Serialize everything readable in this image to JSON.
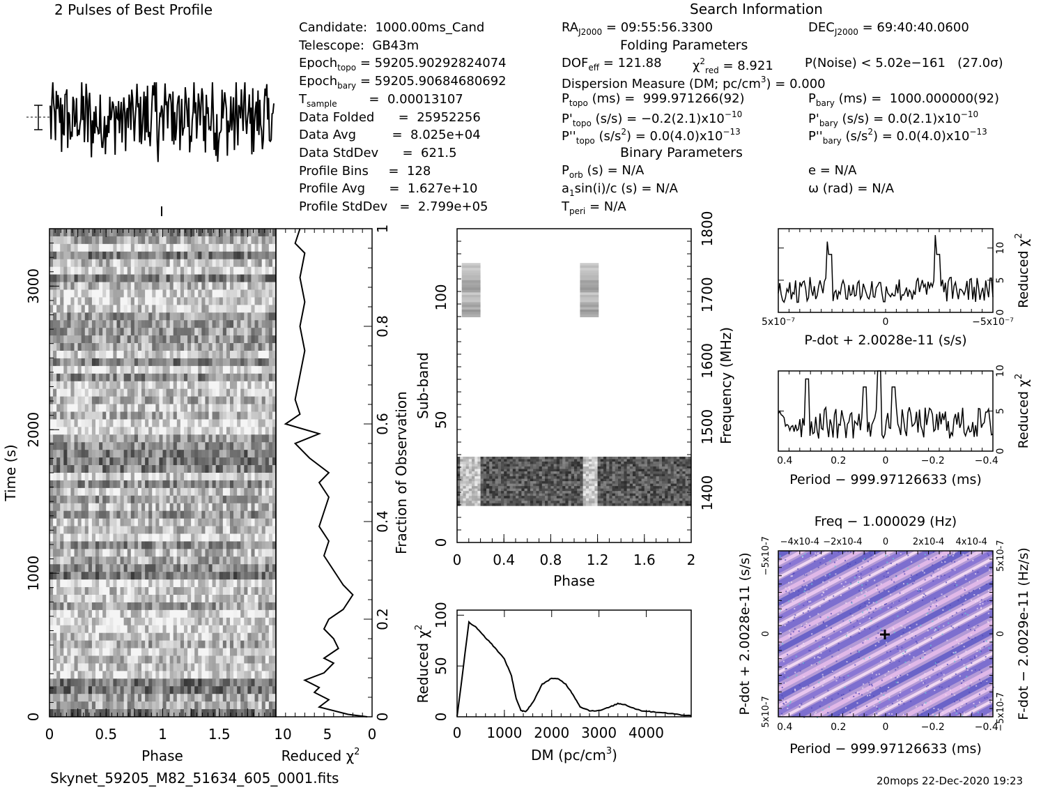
{
  "header": {
    "best_profile_title": "2 Pulses of Best Profile",
    "search_info_title": "Search Information",
    "folding_title": "Folding Parameters",
    "binary_title": "Binary Parameters",
    "filename": "Skynet_59205_M82_51634_605_0001.fits",
    "footer_stamp": "20mops 22-Dec-2020 19:23"
  },
  "info_left": [
    {
      "label": "Candidate:  1000.00ms_Cand"
    },
    {
      "label": "Telescope:  GB43m"
    },
    {
      "label": "Epoch",
      "sub": "topo",
      "rest": " = 59205.90292824074"
    },
    {
      "label": "Epoch",
      "sub": "bary",
      "rest": " = 59205.90684680692"
    },
    {
      "label": "T",
      "sub": "sample",
      "rest": "        =  0.00013107"
    },
    {
      "label": "Data Folded      =  25952256"
    },
    {
      "label": "Data Avg         =  8.025e+04"
    },
    {
      "label": "Data StdDev      =  621.5"
    },
    {
      "label": "Profile Bins     =  128"
    },
    {
      "label": "Profile Avg      =  1.627e+10"
    },
    {
      "label": "Profile StdDev   =  2.799e+05"
    }
  ],
  "info_mid": {
    "ra": "RA",
    "ra_sub": "J2000",
    "ra_val": " = 09:55:56.3300",
    "dec": "DEC",
    "dec_sub": "J2000",
    "dec_val": " = 69:40:40.0600",
    "dof": "DOF",
    "dof_sub": "eff",
    "dof_val": " = 121.88",
    "chi": "χ",
    "chi_sup": "2",
    "chi_sub": "red",
    "chi_val": " = 8.921",
    "pnoise": "P(Noise) < 5.02e−161   (27.0σ)",
    "dm": "Dispersion Measure (DM; pc/cm",
    "dm_sup": "3",
    "dm_val": ") = 0.000",
    "ptopo": "P",
    "ptopo_sub": "topo",
    "ptopo_val": " (ms) =  999.971266(92)",
    "pbary": "P",
    "pbary_sub": "bary",
    "pbary_val": " (ms) =  1000.000000(92)",
    "pdtopo": "P'",
    "pdtopo_sub": "topo",
    "pdtopo_val": " (s/s) = −0.2(2.1)x10",
    "pdtopo_exp": "−10",
    "pdbary": "P'",
    "pdbary_sub": "bary",
    "pdbary_val": " (s/s) = 0.0(2.1)x10",
    "pdbary_exp": "−10",
    "pddtopo": "P''",
    "pddtopo_sub": "topo",
    "pddtopo_val": " (s/s",
    "pddtopo_sup": "2",
    "pddtopo_val2": ") = 0.0(4.0)x10",
    "pddtopo_exp": "−13",
    "pddbary": "P''",
    "pddbary_sub": "bary",
    "pddbary_val": " (s/s",
    "pddbary_sup": "2",
    "pddbary_val2": ") = 0.0(4.0)x10",
    "pddbary_exp": "−13",
    "porb": "P",
    "porb_sub": "orb",
    "porb_val": " (s) = N/A",
    "ecc": "e = N/A",
    "a1": "a",
    "a1_sub": "1",
    "a1_val": "sin(i)/c (s) = N/A",
    "omega": "ω (rad) = N/A",
    "tperi": "T",
    "tperi_sub": "peri",
    "tperi_val": " = N/A"
  },
  "chart_data": [
    {
      "id": "pulse-profile",
      "type": "line",
      "title": "2 Pulses of Best Profile",
      "xlim": [
        0,
        2
      ],
      "note": "noisy profile, no axis labels"
    },
    {
      "id": "time-phase",
      "type": "heatmap",
      "xlabel": "Phase",
      "ylabel": "Time (s)",
      "xlim": [
        0,
        2
      ],
      "ylim": [
        0,
        3400
      ],
      "x_ticks": [
        "0",
        "0.5",
        "1",
        "1.5"
      ],
      "y_ticks": [
        "0",
        "1000",
        "2000",
        "3000"
      ]
    },
    {
      "id": "time-chi2",
      "type": "line",
      "xlabel": "Reduced χ2",
      "ylabel_right": "Fraction of Observation",
      "x_ticks": [
        "10",
        "5",
        "0"
      ],
      "y_ticks": [
        "0",
        "0.2",
        "0.4",
        "0.6",
        "0.8",
        "1"
      ],
      "xlim": [
        10,
        0
      ],
      "ylim": [
        0,
        1
      ],
      "points": [
        [
          0.5,
          0.0
        ],
        [
          2.5,
          0.005
        ],
        [
          5.5,
          0.02
        ],
        [
          4.5,
          0.035
        ],
        [
          6.0,
          0.05
        ],
        [
          5.5,
          0.06
        ],
        [
          7.0,
          0.075
        ],
        [
          5.0,
          0.09
        ],
        [
          4.0,
          0.11
        ],
        [
          5.0,
          0.12
        ],
        [
          3.5,
          0.14
        ],
        [
          4.0,
          0.16
        ],
        [
          5.0,
          0.18
        ],
        [
          4.5,
          0.2
        ],
        [
          3.0,
          0.22
        ],
        [
          2.0,
          0.25
        ],
        [
          3.0,
          0.27
        ],
        [
          4.0,
          0.3
        ],
        [
          5.0,
          0.33
        ],
        [
          4.5,
          0.36
        ],
        [
          5.5,
          0.39
        ],
        [
          5.0,
          0.42
        ],
        [
          4.5,
          0.45
        ],
        [
          5.5,
          0.48
        ],
        [
          4.5,
          0.5
        ],
        [
          6.5,
          0.53
        ],
        [
          8.0,
          0.56
        ],
        [
          5.5,
          0.58
        ],
        [
          9.0,
          0.6
        ],
        [
          7.5,
          0.62
        ],
        [
          8.0,
          0.65
        ],
        [
          7.5,
          0.7
        ],
        [
          7.0,
          0.75
        ],
        [
          7.5,
          0.8
        ],
        [
          7.0,
          0.85
        ],
        [
          7.5,
          0.9
        ],
        [
          7.0,
          0.95
        ],
        [
          8.0,
          0.97
        ],
        [
          7.5,
          1.0
        ]
      ]
    },
    {
      "id": "subband-phase",
      "type": "heatmap",
      "xlabel": "Phase",
      "ylabel": "Sub-band",
      "ylabel_right": "Frequency (MHz)",
      "x_ticks": [
        "0",
        "0.4",
        "0.8",
        "1.2",
        "1.6",
        "2"
      ],
      "y_ticks": [
        "0",
        "50",
        "100"
      ],
      "freq_ticks": [
        "1400",
        "1500",
        "1600",
        "1700",
        "1800"
      ],
      "xlim": [
        0,
        2
      ],
      "ylim": [
        0,
        128
      ],
      "freq_lim": [
        1325,
        1800
      ]
    },
    {
      "id": "dm-chi2",
      "type": "line",
      "xlabel": "DM (pc/cm3)",
      "ylabel": "Reduced χ2",
      "x_ticks": [
        "0",
        "1000",
        "2000",
        "3000",
        "4000"
      ],
      "y_ticks": [
        "0",
        "50",
        "100"
      ],
      "xlim": [
        0,
        4950
      ],
      "ylim": [
        0,
        105
      ],
      "points": [
        [
          0,
          0
        ],
        [
          250,
          93
        ],
        [
          400,
          88
        ],
        [
          600,
          78
        ],
        [
          800,
          68
        ],
        [
          1000,
          57
        ],
        [
          1150,
          40
        ],
        [
          1250,
          18
        ],
        [
          1350,
          6
        ],
        [
          1450,
          5
        ],
        [
          1600,
          14
        ],
        [
          1800,
          32
        ],
        [
          2000,
          38
        ],
        [
          2150,
          37
        ],
        [
          2300,
          32
        ],
        [
          2450,
          22
        ],
        [
          2600,
          10
        ],
        [
          2800,
          6
        ],
        [
          3000,
          6
        ],
        [
          3200,
          9
        ],
        [
          3400,
          13
        ],
        [
          3550,
          12
        ],
        [
          3700,
          9
        ],
        [
          3900,
          6
        ],
        [
          4100,
          5
        ],
        [
          4400,
          4
        ],
        [
          4700,
          2
        ],
        [
          4950,
          1
        ]
      ]
    },
    {
      "id": "pdot-chi2",
      "type": "line",
      "xlabel": "P-dot + 2.0028e-11 (s/s)",
      "ylabel_right": "Reduced χ2",
      "x_ticks": [
        "5x10-7",
        "0",
        "-5x10-7"
      ],
      "y_ticks": [
        "0",
        "5",
        "10"
      ],
      "ylim": [
        0,
        13
      ]
    },
    {
      "id": "period-chi2",
      "type": "line",
      "xlabel": "Period − 999.97126633 (ms)",
      "ylabel_right": "Reduced χ2",
      "x_ticks": [
        "0.4",
        "0.2",
        "0",
        "−0.2",
        "−0.4"
      ],
      "y_ticks": [
        "0",
        "5",
        "10"
      ],
      "ylim": [
        0,
        10
      ]
    },
    {
      "id": "p-pdot-plane",
      "type": "heatmap",
      "title": "Freq − 1.000029 (Hz)",
      "xlabel": "Period − 999.97126633 (ms)",
      "ylabel": "P-dot + 2.0028e-11 (s/s)",
      "ylabel_right": "F-dot − 2.0029e-11 (Hz/s)",
      "x_ticks": [
        "0.4",
        "0.2",
        "0",
        "−0.2",
        "−0.4"
      ],
      "top_ticks": [
        "−4x10-4",
        "−2x10-4",
        "0",
        "2x10-4",
        "4x10-4"
      ],
      "y_ticks": [
        "5x10-7",
        "0",
        "−5x10-7"
      ],
      "right_ticks": [
        "−5x10-7",
        "0",
        "5x10-7"
      ]
    }
  ]
}
